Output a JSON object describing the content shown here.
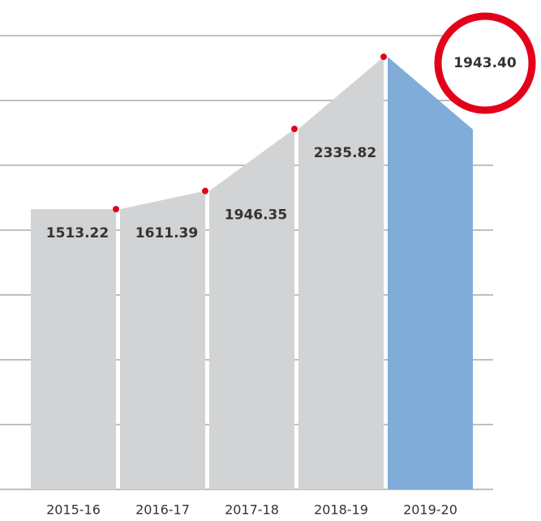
{
  "chart_data": {
    "type": "stepped-area",
    "categories": [
      "2015-16",
      "2016-17",
      "2017-18",
      "2018-19",
      "2019-20"
    ],
    "values": [
      1513.22,
      1611.39,
      1946.35,
      2335.82,
      1943.4
    ],
    "value_labels": [
      "1513.22",
      "1611.39",
      "1946.35",
      "2335.82",
      "1943.40"
    ],
    "colors": [
      "#d1d3d4",
      "#d1d3d4",
      "#d1d3d4",
      "#d1d3d4",
      "#80acd9"
    ],
    "marker_color": "#e3001b",
    "highlight_ring_color": "#e3001b",
    "ylim": [
      0,
      2450
    ],
    "yticks": [
      0,
      350,
      700,
      1050,
      1400,
      1750,
      2100,
      2450
    ],
    "grid": true
  }
}
